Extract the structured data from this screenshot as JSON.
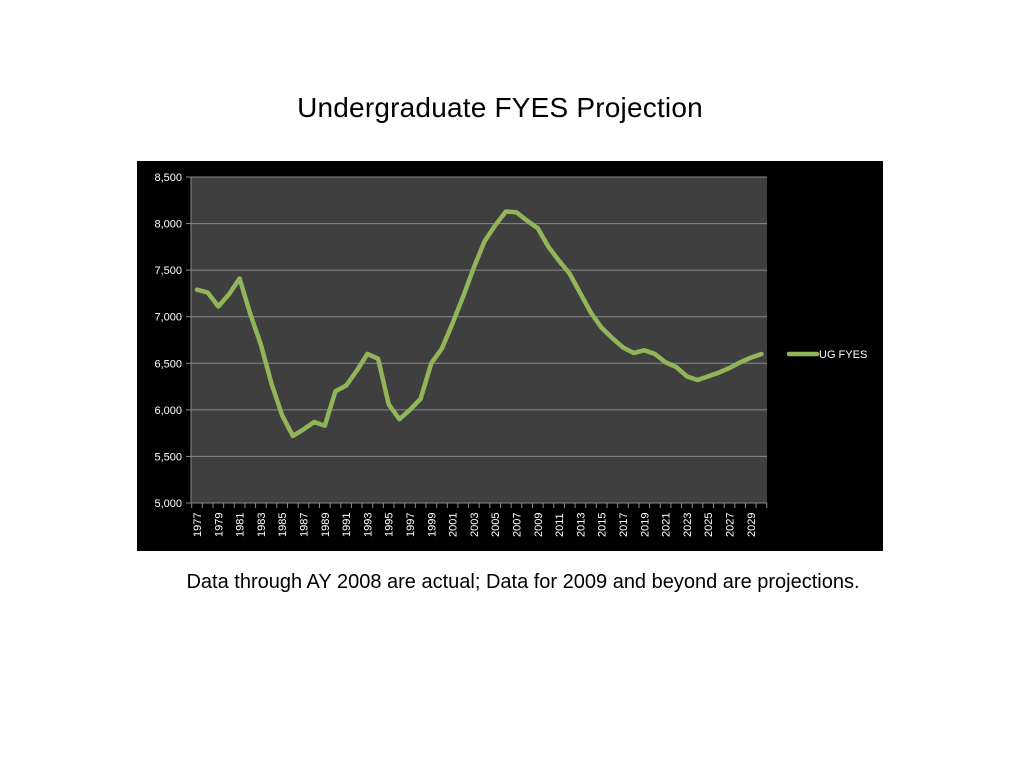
{
  "slide": {
    "title": "Undergraduate FYES Projection",
    "footnote": "Data through AY 2008 are actual; Data for 2009 and beyond are projections."
  },
  "colors": {
    "chart_background": "#000000",
    "plot_background": "#3f3f3f",
    "gridline": "#8a8a8a",
    "series_line": "#93b55a",
    "text": "#ffffff"
  },
  "chart_data": {
    "type": "line",
    "title": "",
    "xlabel": "",
    "ylabel": "",
    "ylim": [
      5000,
      8500
    ],
    "y_ticks": [
      5000,
      5500,
      6000,
      6500,
      7000,
      7500,
      8000,
      8500
    ],
    "y_tick_labels": [
      "5,000",
      "5,500",
      "6,000",
      "6,500",
      "7,000",
      "7,500",
      "8,000",
      "8,500"
    ],
    "grid": true,
    "legend": "right",
    "x": [
      1977,
      1978,
      1979,
      1980,
      1981,
      1982,
      1983,
      1984,
      1985,
      1986,
      1987,
      1988,
      1989,
      1990,
      1991,
      1992,
      1993,
      1994,
      1995,
      1996,
      1997,
      1998,
      1999,
      2000,
      2001,
      2002,
      2003,
      2004,
      2005,
      2006,
      2007,
      2008,
      2009,
      2010,
      2011,
      2012,
      2013,
      2014,
      2015,
      2016,
      2017,
      2018,
      2019,
      2020,
      2021,
      2022,
      2023,
      2024,
      2025,
      2026,
      2027,
      2028,
      2029,
      2030
    ],
    "x_tick_labels": [
      "1977",
      "1979",
      "1981",
      "1983",
      "1985",
      "1987",
      "1989",
      "1991",
      "1993",
      "1995",
      "1997",
      "1999",
      "2001",
      "2003",
      "2005",
      "2007",
      "2009",
      "2011",
      "2013",
      "2015",
      "2017",
      "2019",
      "2021",
      "2023",
      "2025",
      "2027",
      "2029"
    ],
    "series": [
      {
        "name": "UG FYES",
        "values": [
          7290,
          7260,
          7110,
          7240,
          7410,
          7030,
          6700,
          6280,
          5940,
          5720,
          5790,
          5870,
          5830,
          6200,
          6260,
          6420,
          6600,
          6550,
          6060,
          5900,
          6000,
          6120,
          6500,
          6660,
          6930,
          7220,
          7530,
          7810,
          7980,
          8130,
          8120,
          8030,
          7950,
          7750,
          7600,
          7460,
          7250,
          7040,
          6880,
          6770,
          6670,
          6610,
          6640,
          6600,
          6510,
          6460,
          6360,
          6320,
          6360,
          6400,
          6450,
          6510,
          6560,
          6600
        ]
      }
    ]
  }
}
